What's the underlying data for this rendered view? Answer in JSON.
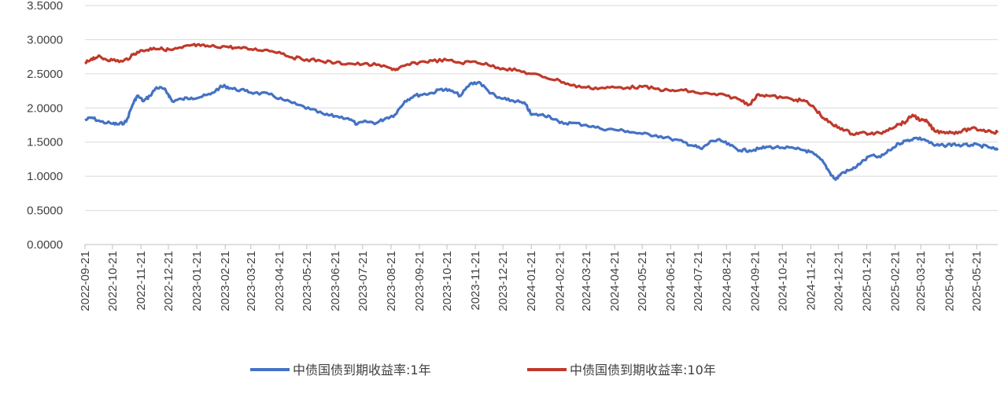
{
  "chart_data": {
    "type": "line",
    "title": "",
    "xlabel": "",
    "ylabel": "",
    "ylim": [
      0,
      3.5
    ],
    "yticks": [
      "0.0000",
      "0.5000",
      "1.0000",
      "1.5000",
      "2.0000",
      "2.5000",
      "3.0000",
      "3.5000"
    ],
    "xticks": [
      "2022-09-21",
      "2022-10-21",
      "2022-11-21",
      "2022-12-21",
      "2023-01-21",
      "2023-02-21",
      "2023-03-21",
      "2023-04-21",
      "2023-05-21",
      "2023-06-21",
      "2023-07-21",
      "2023-08-21",
      "2023-09-21",
      "2023-10-21",
      "2023-11-21",
      "2023-12-21",
      "2024-01-21",
      "2024-02-21",
      "2024-03-21",
      "2024-04-21",
      "2024-05-21",
      "2024-06-21",
      "2024-07-21",
      "2024-08-21",
      "2024-09-21",
      "2024-10-21",
      "2024-11-21",
      "2024-12-21",
      "2025-01-21",
      "2025-02-21",
      "2025-03-21",
      "2025-04-21",
      "2025-05-21"
    ],
    "grid": true,
    "legend": "bottom",
    "series": [
      {
        "name": "中债国债到期收益率:1年",
        "color": "#4472C4",
        "points": [
          [
            "2022-09-21",
            1.82
          ],
          [
            "2022-09-28",
            1.86
          ],
          [
            "2022-10-08",
            1.8
          ],
          [
            "2022-10-21",
            1.77
          ],
          [
            "2022-10-28",
            1.76
          ],
          [
            "2022-11-05",
            1.8
          ],
          [
            "2022-11-12",
            2.05
          ],
          [
            "2022-11-17",
            2.18
          ],
          [
            "2022-11-24",
            2.1
          ],
          [
            "2022-12-01",
            2.18
          ],
          [
            "2022-12-08",
            2.3
          ],
          [
            "2022-12-16",
            2.28
          ],
          [
            "2022-12-21",
            2.2
          ],
          [
            "2022-12-25",
            2.1
          ],
          [
            "2023-01-05",
            2.13
          ],
          [
            "2023-01-15",
            2.15
          ],
          [
            "2023-01-25",
            2.16
          ],
          [
            "2023-02-05",
            2.2
          ],
          [
            "2023-02-15",
            2.3
          ],
          [
            "2023-02-21",
            2.32
          ],
          [
            "2023-03-01",
            2.28
          ],
          [
            "2023-03-15",
            2.25
          ],
          [
            "2023-03-25",
            2.22
          ],
          [
            "2023-04-10",
            2.2
          ],
          [
            "2023-04-25",
            2.12
          ],
          [
            "2023-05-10",
            2.05
          ],
          [
            "2023-05-25",
            1.98
          ],
          [
            "2023-06-10",
            1.9
          ],
          [
            "2023-06-21",
            1.88
          ],
          [
            "2023-07-05",
            1.85
          ],
          [
            "2023-07-15",
            1.76
          ],
          [
            "2023-07-25",
            1.8
          ],
          [
            "2023-08-05",
            1.78
          ],
          [
            "2023-08-15",
            1.85
          ],
          [
            "2023-08-25",
            1.9
          ],
          [
            "2023-09-05",
            2.1
          ],
          [
            "2023-09-15",
            2.18
          ],
          [
            "2023-09-25",
            2.2
          ],
          [
            "2023-10-05",
            2.22
          ],
          [
            "2023-10-15",
            2.28
          ],
          [
            "2023-10-25",
            2.25
          ],
          [
            "2023-11-05",
            2.18
          ],
          [
            "2023-11-15",
            2.35
          ],
          [
            "2023-11-25",
            2.38
          ],
          [
            "2023-12-05",
            2.25
          ],
          [
            "2023-12-15",
            2.15
          ],
          [
            "2023-12-25",
            2.12
          ],
          [
            "2024-01-05",
            2.1
          ],
          [
            "2024-01-15",
            2.05
          ],
          [
            "2024-01-21",
            1.9
          ],
          [
            "2024-02-01",
            1.9
          ],
          [
            "2024-02-10",
            1.88
          ],
          [
            "2024-02-21",
            1.78
          ],
          [
            "2024-03-05",
            1.78
          ],
          [
            "2024-03-21",
            1.75
          ],
          [
            "2024-04-05",
            1.7
          ],
          [
            "2024-04-21",
            1.68
          ],
          [
            "2024-05-05",
            1.66
          ],
          [
            "2024-05-21",
            1.62
          ],
          [
            "2024-06-05",
            1.6
          ],
          [
            "2024-06-21",
            1.55
          ],
          [
            "2024-07-05",
            1.5
          ],
          [
            "2024-07-15",
            1.45
          ],
          [
            "2024-07-25",
            1.4
          ],
          [
            "2024-08-05",
            1.52
          ],
          [
            "2024-08-15",
            1.52
          ],
          [
            "2024-08-25",
            1.45
          ],
          [
            "2024-09-05",
            1.38
          ],
          [
            "2024-09-15",
            1.38
          ],
          [
            "2024-09-25",
            1.4
          ],
          [
            "2024-10-05",
            1.43
          ],
          [
            "2024-10-21",
            1.42
          ],
          [
            "2024-11-05",
            1.4
          ],
          [
            "2024-11-15",
            1.38
          ],
          [
            "2024-11-25",
            1.32
          ],
          [
            "2024-12-05",
            1.2
          ],
          [
            "2024-12-12",
            1.05
          ],
          [
            "2024-12-18",
            0.95
          ],
          [
            "2024-12-25",
            1.05
          ],
          [
            "2025-01-05",
            1.1
          ],
          [
            "2025-01-15",
            1.2
          ],
          [
            "2025-01-25",
            1.3
          ],
          [
            "2025-02-05",
            1.28
          ],
          [
            "2025-02-15",
            1.38
          ],
          [
            "2025-02-25",
            1.48
          ],
          [
            "2025-03-05",
            1.52
          ],
          [
            "2025-03-15",
            1.56
          ],
          [
            "2025-03-25",
            1.54
          ],
          [
            "2025-04-05",
            1.45
          ],
          [
            "2025-04-15",
            1.45
          ],
          [
            "2025-04-25",
            1.47
          ],
          [
            "2025-05-05",
            1.45
          ],
          [
            "2025-05-15",
            1.46
          ],
          [
            "2025-05-25",
            1.45
          ],
          [
            "2025-06-05",
            1.42
          ],
          [
            "2025-06-13",
            1.38
          ]
        ]
      },
      {
        "name": "中债国债到期收益率:10年",
        "color": "#C0392B",
        "points": [
          [
            "2022-09-21",
            2.65
          ],
          [
            "2022-09-28",
            2.72
          ],
          [
            "2022-10-05",
            2.75
          ],
          [
            "2022-10-12",
            2.72
          ],
          [
            "2022-10-21",
            2.7
          ],
          [
            "2022-11-01",
            2.68
          ],
          [
            "2022-11-10",
            2.75
          ],
          [
            "2022-11-17",
            2.82
          ],
          [
            "2022-11-28",
            2.85
          ],
          [
            "2022-12-05",
            2.88
          ],
          [
            "2022-12-15",
            2.86
          ],
          [
            "2022-12-25",
            2.85
          ],
          [
            "2023-01-05",
            2.88
          ],
          [
            "2023-01-15",
            2.92
          ],
          [
            "2023-01-25",
            2.91
          ],
          [
            "2023-02-05",
            2.9
          ],
          [
            "2023-02-21",
            2.9
          ],
          [
            "2023-03-05",
            2.88
          ],
          [
            "2023-03-21",
            2.86
          ],
          [
            "2023-04-05",
            2.85
          ],
          [
            "2023-04-21",
            2.82
          ],
          [
            "2023-05-05",
            2.74
          ],
          [
            "2023-05-21",
            2.71
          ],
          [
            "2023-06-05",
            2.69
          ],
          [
            "2023-06-21",
            2.66
          ],
          [
            "2023-07-05",
            2.65
          ],
          [
            "2023-07-21",
            2.64
          ],
          [
            "2023-08-05",
            2.63
          ],
          [
            "2023-08-21",
            2.58
          ],
          [
            "2023-08-28",
            2.56
          ],
          [
            "2023-09-05",
            2.62
          ],
          [
            "2023-09-21",
            2.67
          ],
          [
            "2023-10-05",
            2.69
          ],
          [
            "2023-10-21",
            2.7
          ],
          [
            "2023-11-05",
            2.66
          ],
          [
            "2023-11-21",
            2.68
          ],
          [
            "2023-12-05",
            2.63
          ],
          [
            "2023-12-21",
            2.58
          ],
          [
            "2024-01-05",
            2.55
          ],
          [
            "2024-01-21",
            2.5
          ],
          [
            "2024-02-05",
            2.45
          ],
          [
            "2024-02-21",
            2.4
          ],
          [
            "2024-03-05",
            2.33
          ],
          [
            "2024-03-21",
            2.3
          ],
          [
            "2024-04-05",
            2.29
          ],
          [
            "2024-04-21",
            2.3
          ],
          [
            "2024-05-05",
            2.3
          ],
          [
            "2024-05-21",
            2.31
          ],
          [
            "2024-06-05",
            2.28
          ],
          [
            "2024-06-21",
            2.25
          ],
          [
            "2024-07-05",
            2.26
          ],
          [
            "2024-07-21",
            2.22
          ],
          [
            "2024-08-05",
            2.2
          ],
          [
            "2024-08-21",
            2.18
          ],
          [
            "2024-09-05",
            2.12
          ],
          [
            "2024-09-15",
            2.05
          ],
          [
            "2024-09-25",
            2.2
          ],
          [
            "2024-10-05",
            2.18
          ],
          [
            "2024-10-21",
            2.15
          ],
          [
            "2024-11-05",
            2.12
          ],
          [
            "2024-11-15",
            2.1
          ],
          [
            "2024-11-25",
            2.0
          ],
          [
            "2024-12-05",
            1.85
          ],
          [
            "2024-12-15",
            1.75
          ],
          [
            "2024-12-25",
            1.7
          ],
          [
            "2025-01-05",
            1.62
          ],
          [
            "2025-01-15",
            1.64
          ],
          [
            "2025-01-25",
            1.62
          ],
          [
            "2025-02-05",
            1.63
          ],
          [
            "2025-02-15",
            1.7
          ],
          [
            "2025-02-25",
            1.76
          ],
          [
            "2025-03-05",
            1.8
          ],
          [
            "2025-03-12",
            1.9
          ],
          [
            "2025-03-21",
            1.82
          ],
          [
            "2025-03-28",
            1.8
          ],
          [
            "2025-04-05",
            1.66
          ],
          [
            "2025-04-15",
            1.65
          ],
          [
            "2025-04-25",
            1.64
          ],
          [
            "2025-05-05",
            1.66
          ],
          [
            "2025-05-15",
            1.7
          ],
          [
            "2025-05-25",
            1.68
          ],
          [
            "2025-06-05",
            1.66
          ],
          [
            "2025-06-13",
            1.64
          ]
        ]
      }
    ]
  }
}
